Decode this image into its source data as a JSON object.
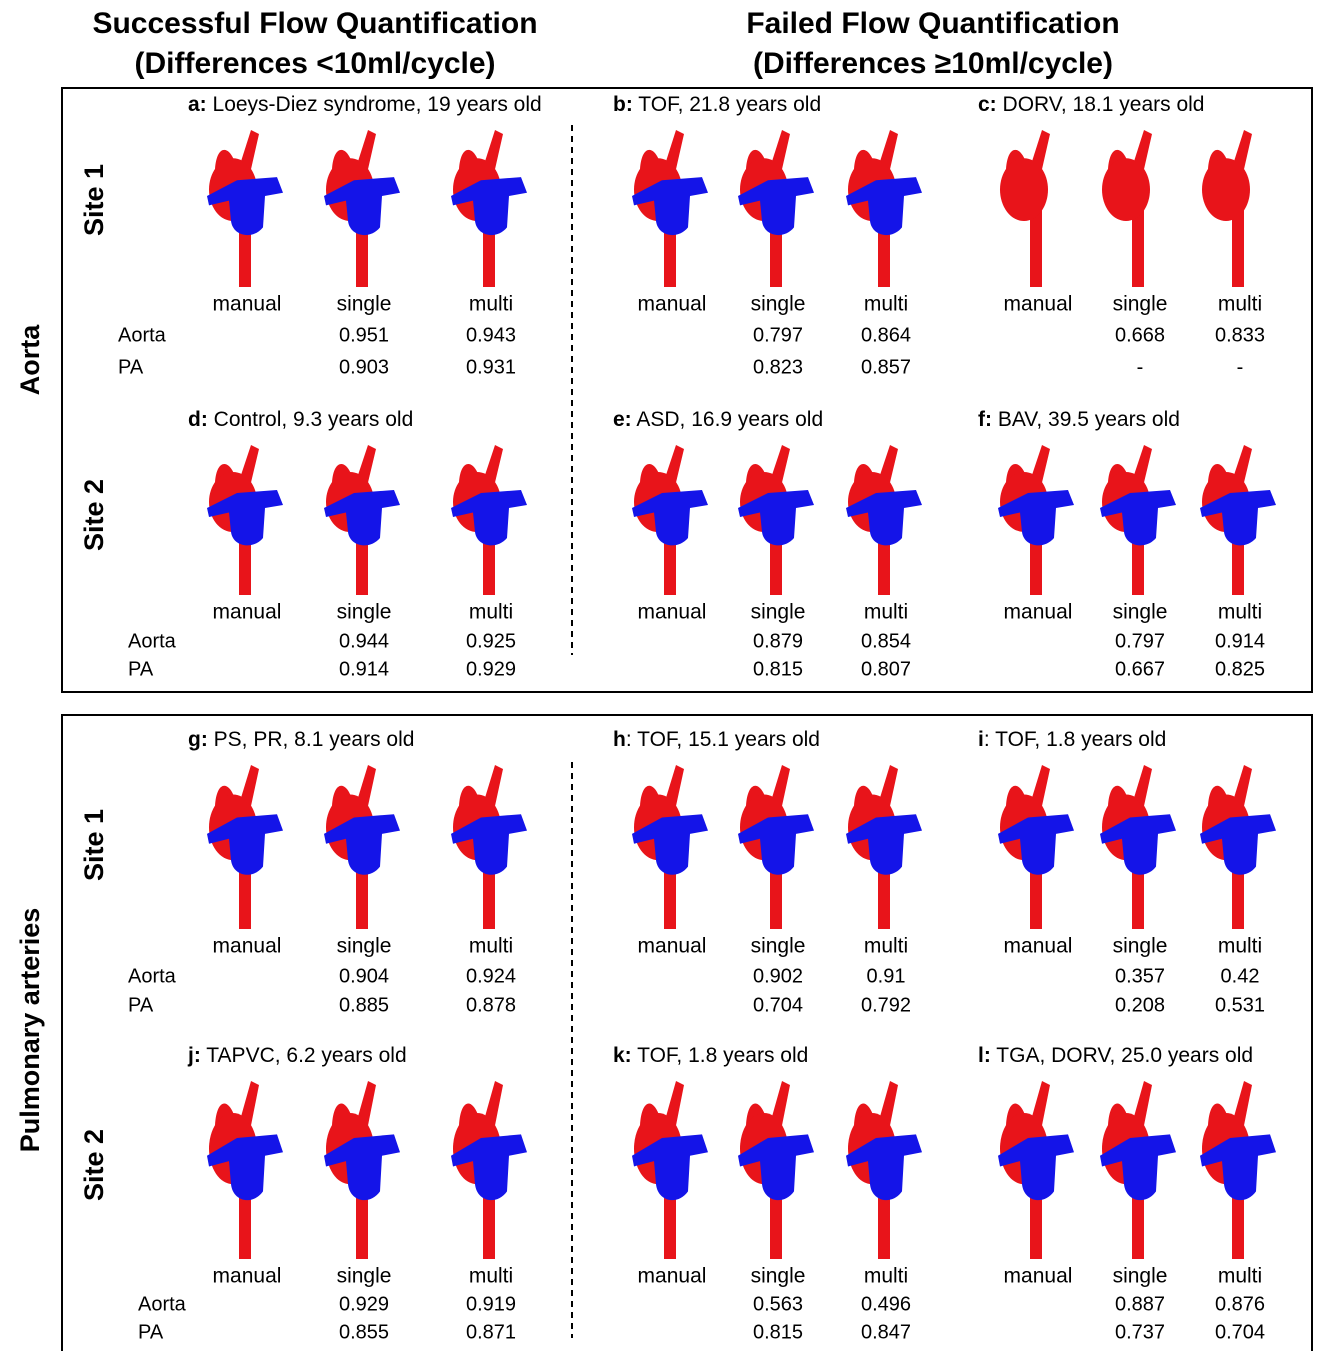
{
  "headers": [
    {
      "title": "Successful Flow Quantification",
      "subtitle": "(Differences <10ml/cycle)"
    },
    {
      "title": "Failed Flow Quantification",
      "subtitle": "(Differences ≥10ml/cycle)"
    }
  ],
  "groups": [
    {
      "label": "Aorta",
      "sites": [
        "Site 1",
        "Site 2"
      ]
    },
    {
      "label": "Pulmonary arteries",
      "sites": [
        "Site 1",
        "Site 2"
      ]
    }
  ],
  "panels": [
    {
      "letter": "a:",
      "title": " Loeys-Diez syndrome, 19 years old",
      "columns": [
        "manual",
        "single",
        "multi"
      ],
      "row_names": [
        "Aorta",
        "PA"
      ],
      "aorta": [
        0.951,
        0.943
      ],
      "pa": [
        0.903,
        0.931
      ]
    },
    {
      "letter": "b:",
      "title": " TOF, 21.8 years old",
      "columns": [
        "manual",
        "single",
        "multi"
      ],
      "aorta": [
        0.797,
        0.864
      ],
      "pa": [
        0.823,
        0.857
      ]
    },
    {
      "letter": "c:",
      "title": " DORV, 18.1 years old",
      "columns": [
        "manual",
        "single",
        "multi"
      ],
      "aorta": [
        0.668,
        0.833
      ],
      "pa": [
        "-",
        "-"
      ]
    },
    {
      "letter": "d:",
      "title": " Control, 9.3 years old",
      "columns": [
        "manual",
        "single",
        "multi"
      ],
      "row_names": [
        "Aorta",
        "PA"
      ],
      "aorta": [
        0.944,
        0.925
      ],
      "pa": [
        0.914,
        0.929
      ]
    },
    {
      "letter": "e:",
      "title": " ASD, 16.9 years old",
      "columns": [
        "manual",
        "single",
        "multi"
      ],
      "aorta": [
        0.879,
        0.854
      ],
      "pa": [
        0.815,
        0.807
      ]
    },
    {
      "letter": "f:",
      "title": " BAV, 39.5 years old",
      "columns": [
        "manual",
        "single",
        "multi"
      ],
      "aorta": [
        0.797,
        0.914
      ],
      "pa": [
        0.667,
        0.825
      ]
    },
    {
      "letter": "g:",
      "title": " PS, PR, 8.1 years old",
      "columns": [
        "manual",
        "single",
        "multi"
      ],
      "row_names": [
        "Aorta",
        "PA"
      ],
      "aorta": [
        0.904,
        0.924
      ],
      "pa": [
        0.885,
        0.878
      ]
    },
    {
      "letter": "h",
      "title": ": TOF, 15.1 years old",
      "columns": [
        "manual",
        "single",
        "multi"
      ],
      "aorta": [
        0.902,
        0.91
      ],
      "pa": [
        0.704,
        0.792
      ]
    },
    {
      "letter": "i",
      "title": ": TOF, 1.8 years old",
      "columns": [
        "manual",
        "single",
        "multi"
      ],
      "aorta": [
        0.357,
        0.42
      ],
      "pa": [
        0.208,
        0.531
      ]
    },
    {
      "letter": "j:",
      "title": " TAPVC, 6.2 years old",
      "columns": [
        "manual",
        "single",
        "multi"
      ],
      "row_names": [
        "Aorta",
        "PA"
      ],
      "aorta": [
        0.929,
        0.919
      ],
      "pa": [
        0.855,
        0.871
      ]
    },
    {
      "letter": "k:",
      "title": " TOF, 1.8 years old",
      "columns": [
        "manual",
        "single",
        "multi"
      ],
      "aorta": [
        0.563,
        0.496
      ],
      "pa": [
        0.815,
        0.847
      ]
    },
    {
      "letter": "l:",
      "title": " TGA, DORV, 25.0 years old",
      "columns": [
        "manual",
        "single",
        "multi"
      ],
      "aorta": [
        0.887,
        0.876
      ],
      "pa": [
        0.737,
        0.704
      ]
    }
  ]
}
